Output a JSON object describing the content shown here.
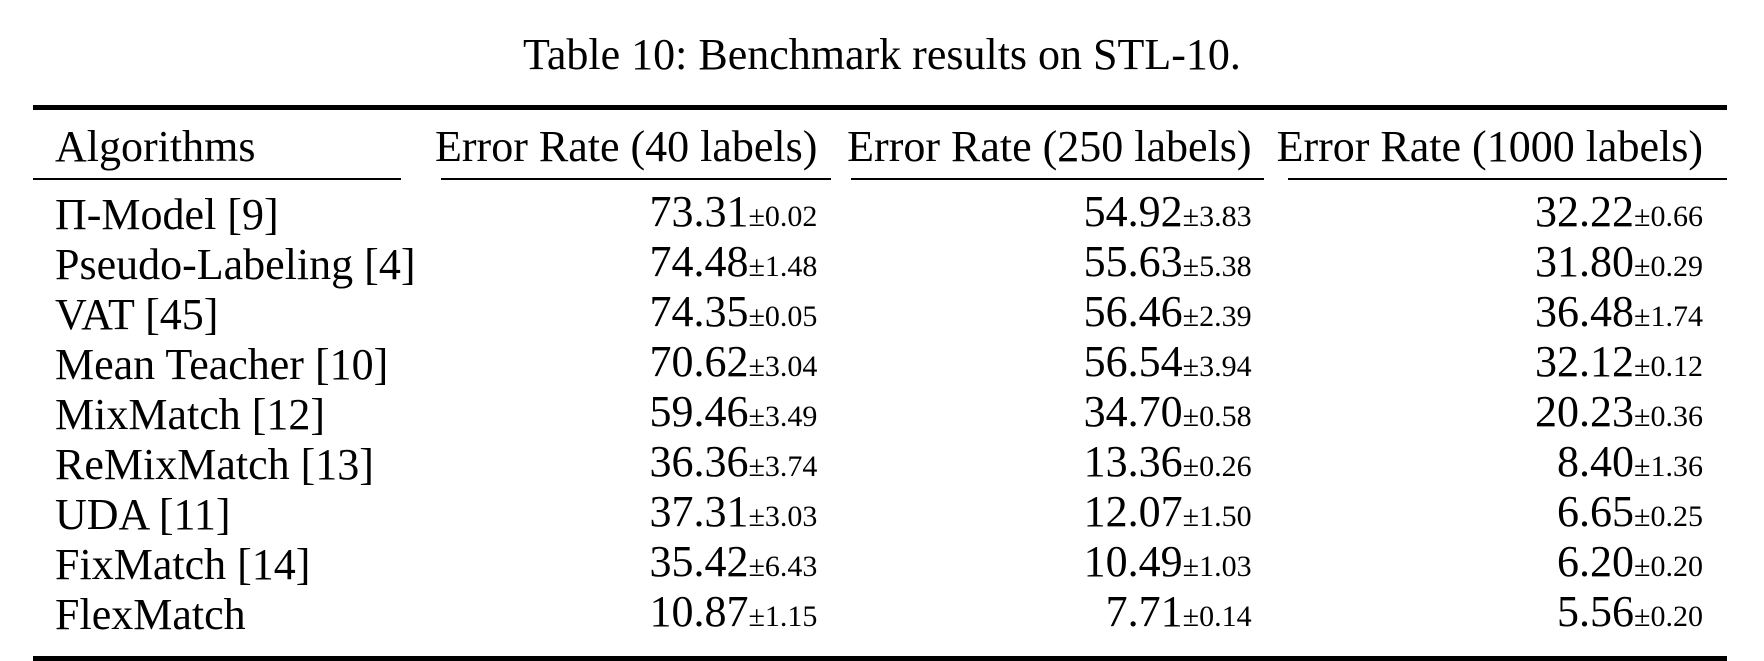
{
  "caption": "Table 10: Benchmark results on STL-10.",
  "table": {
    "plus_minus": "±",
    "columns": [
      "Algorithms",
      "Error Rate (40 labels)",
      "Error Rate (250 labels)",
      "Error Rate (1000 labels)"
    ],
    "rows": [
      {
        "algorithm": "Π-Model [9]",
        "values": [
          {
            "mean": "73.31",
            "std": "0.02"
          },
          {
            "mean": "54.92",
            "std": "3.83"
          },
          {
            "mean": "32.22",
            "std": "0.66"
          }
        ]
      },
      {
        "algorithm": "Pseudo-Labeling [4]",
        "values": [
          {
            "mean": "74.48",
            "std": "1.48"
          },
          {
            "mean": "55.63",
            "std": "5.38"
          },
          {
            "mean": "31.80",
            "std": "0.29"
          }
        ]
      },
      {
        "algorithm": "VAT [45]",
        "values": [
          {
            "mean": "74.35",
            "std": "0.05"
          },
          {
            "mean": "56.46",
            "std": "2.39"
          },
          {
            "mean": "36.48",
            "std": "1.74"
          }
        ]
      },
      {
        "algorithm": "Mean Teacher [10]",
        "values": [
          {
            "mean": "70.62",
            "std": "3.04"
          },
          {
            "mean": "56.54",
            "std": "3.94"
          },
          {
            "mean": "32.12",
            "std": "0.12"
          }
        ]
      },
      {
        "algorithm": "MixMatch [12]",
        "values": [
          {
            "mean": "59.46",
            "std": "3.49"
          },
          {
            "mean": "34.70",
            "std": "0.58"
          },
          {
            "mean": "20.23",
            "std": "0.36"
          }
        ]
      },
      {
        "algorithm": "ReMixMatch [13]",
        "values": [
          {
            "mean": "36.36",
            "std": "3.74"
          },
          {
            "mean": "13.36",
            "std": "0.26"
          },
          {
            "mean": "8.40",
            "std": "1.36"
          }
        ]
      },
      {
        "algorithm": "UDA [11]",
        "values": [
          {
            "mean": "37.31",
            "std": "3.03"
          },
          {
            "mean": "12.07",
            "std": "1.50"
          },
          {
            "mean": "6.65",
            "std": "0.25"
          }
        ]
      },
      {
        "algorithm": "FixMatch [14]",
        "values": [
          {
            "mean": "35.42",
            "std": "6.43"
          },
          {
            "mean": "10.49",
            "std": "1.03"
          },
          {
            "mean": "6.20",
            "std": "0.20"
          }
        ]
      },
      {
        "algorithm": "FlexMatch",
        "values": [
          {
            "mean": "10.87",
            "std": "1.15"
          },
          {
            "mean": "7.71",
            "std": "0.14"
          },
          {
            "mean": "5.56",
            "std": "0.20"
          }
        ]
      }
    ]
  }
}
